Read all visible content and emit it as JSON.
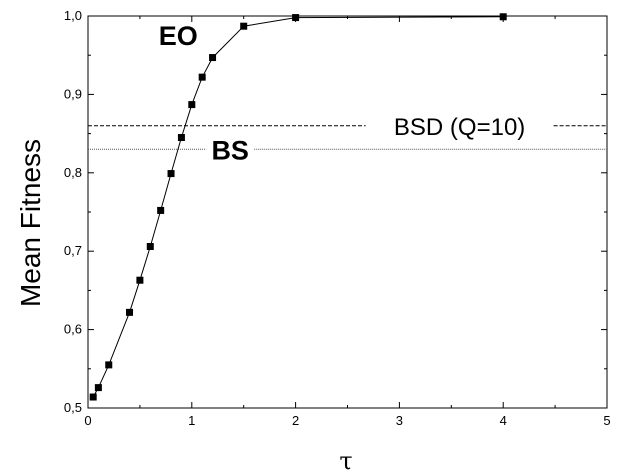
{
  "chart_data": {
    "type": "line",
    "title": "",
    "xlabel": "τ",
    "ylabel": "Mean Fitness",
    "xlim": [
      0,
      5
    ],
    "ylim": [
      0.5,
      1.0
    ],
    "x_ticks": [
      0,
      1,
      2,
      3,
      4,
      5
    ],
    "y_ticks": [
      0.5,
      0.6,
      0.7,
      0.8,
      0.9,
      1.0
    ],
    "x_tick_labels": [
      "0",
      "1",
      "2",
      "3",
      "4",
      "5"
    ],
    "y_tick_labels": [
      "0,5",
      "0,6",
      "0,7",
      "0,8",
      "0,9",
      "1,0"
    ],
    "grid": false,
    "series": [
      {
        "name": "EO",
        "marker": "square",
        "color": "#000000",
        "x": [
          0.05,
          0.1,
          0.2,
          0.4,
          0.5,
          0.6,
          0.7,
          0.8,
          0.9,
          1.0,
          1.1,
          1.2,
          1.5,
          2.0,
          4.0
        ],
        "y": [
          0.514,
          0.526,
          0.555,
          0.622,
          0.663,
          0.706,
          0.752,
          0.799,
          0.845,
          0.887,
          0.922,
          0.947,
          0.987,
          0.998,
          0.999
        ]
      }
    ],
    "reference_lines": [
      {
        "name": "BSD (Q=10)",
        "y": 0.86,
        "style": "dashed"
      },
      {
        "name": "BS",
        "y": 0.83,
        "style": "dotted"
      }
    ],
    "annotations": [
      {
        "text": "EO",
        "x": 0.87,
        "y": 0.976
      },
      {
        "text": "BSD (Q=10)",
        "x": 3.58,
        "y": 0.86
      },
      {
        "text": "BS",
        "x": 1.37,
        "y": 0.83
      }
    ]
  }
}
